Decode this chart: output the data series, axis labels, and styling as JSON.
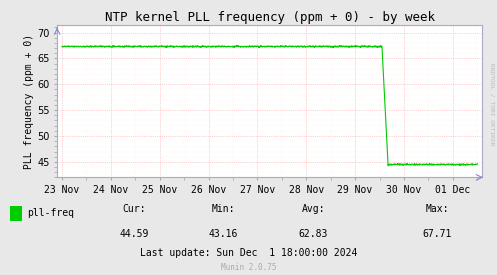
{
  "title": "NTP kernel PLL frequency (ppm + 0) - by week",
  "ylabel": "PLL frequency (ppm + 0)",
  "background_color": "#e8e8e8",
  "plot_bg_color": "#ffffff",
  "line_color": "#00cc00",
  "line_width": 0.8,
  "ylim": [
    42.0,
    71.5
  ],
  "yticks": [
    45,
    50,
    55,
    60,
    65,
    70
  ],
  "x_labels": [
    "23 Nov",
    "24 Nov",
    "25 Nov",
    "26 Nov",
    "27 Nov",
    "28 Nov",
    "29 Nov",
    "30 Nov",
    "01 Dec"
  ],
  "legend_label": "pll-freq",
  "legend_color": "#00cc00",
  "cur": "44.59",
  "min": "43.16",
  "avg": "62.83",
  "max": "67.71",
  "last_update": "Last update: Sun Dec  1 18:00:00 2024",
  "munin_version": "Munin 2.0.75",
  "rrdtool_label": "RRDTOOL / TOBI OETIKER",
  "title_fontsize": 9,
  "axis_fontsize": 7,
  "tick_fontsize": 7,
  "stats_fontsize": 7,
  "munin_fontsize": 5.5
}
